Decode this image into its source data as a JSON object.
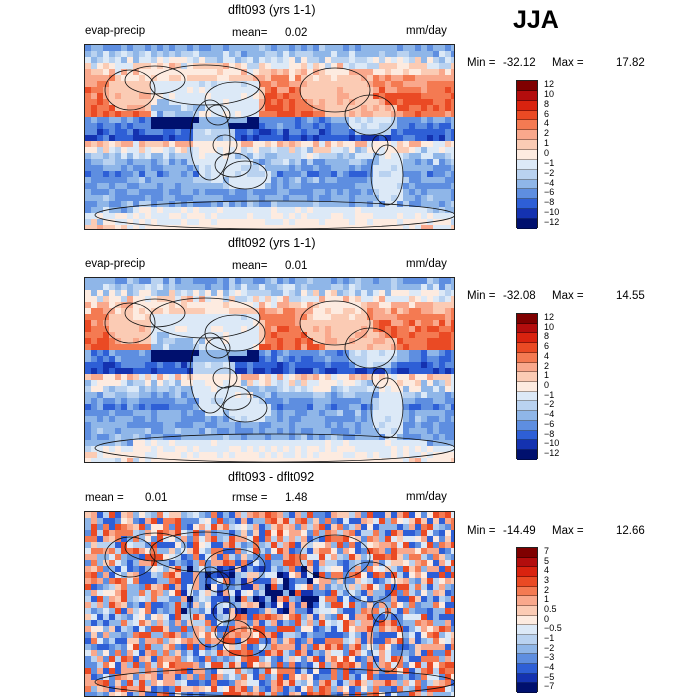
{
  "season": "JJA",
  "panels": [
    {
      "title": "dflt093 (yrs 1-1)",
      "left_label": "evap-precip",
      "stat_label": "mean=",
      "stat_value": "0.02",
      "units": "mm/day",
      "min_label": "Min =",
      "min_value": "-32.12",
      "max_label": "Max =",
      "max_value": "17.82",
      "scale": [
        "12",
        "10",
        "8",
        "6",
        "4",
        "2",
        "1",
        "0",
        "-1",
        "-2",
        "-4",
        "-6",
        "-8",
        "-10",
        "-12"
      ]
    },
    {
      "title": "dflt092 (yrs 1-1)",
      "left_label": "evap-precip",
      "stat_label": "mean=",
      "stat_value": "0.01",
      "units": "mm/day",
      "min_label": "Min =",
      "min_value": "-32.08",
      "max_label": "Max =",
      "max_value": "14.55",
      "scale": [
        "12",
        "10",
        "8",
        "6",
        "4",
        "2",
        "1",
        "0",
        "-1",
        "-2",
        "-4",
        "-6",
        "-8",
        "-10",
        "-12"
      ]
    },
    {
      "title": "dflt093 - dflt092",
      "left_label": "mean =",
      "left_value": "0.01",
      "stat_label": "rmse =",
      "stat_value": "1.48",
      "units": "mm/day",
      "min_label": "Min =",
      "min_value": "-14.49",
      "max_label": "Max =",
      "max_value": "12.66",
      "scale": [
        "7",
        "5",
        "4",
        "3",
        "2",
        "1",
        "0.5",
        "0",
        "-0.5",
        "-1",
        "-2",
        "-3",
        "-4",
        "-5",
        "-7"
      ]
    }
  ],
  "colors": {
    "colorbar": [
      "#7f0000",
      "#b30d0d",
      "#d9230f",
      "#ea4a24",
      "#f47a52",
      "#f9a88c",
      "#fbcbb4",
      "#fdebe0",
      "#dce9f7",
      "#b9d2f0",
      "#8fb6e8",
      "#5e8ee0",
      "#2e5fd6",
      "#1432b0",
      "#00106e"
    ]
  }
}
